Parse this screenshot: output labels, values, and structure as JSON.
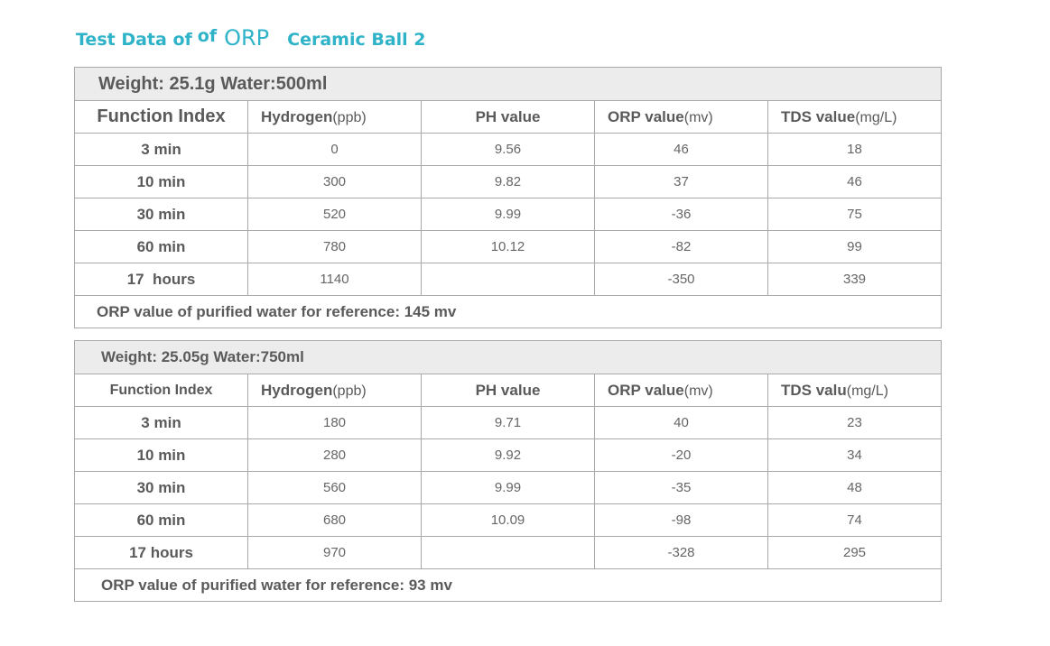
{
  "title": {
    "part1": "Test Data of",
    "part2": "of",
    "part3": "ORP",
    "part4": "Ceramic Ball 2"
  },
  "tables": [
    {
      "weight_line": "Weight: 25.1g Water:500ml",
      "headers": [
        {
          "main": "Function Index",
          "unit": ""
        },
        {
          "main": "Hydrogen",
          "unit": "(ppb)"
        },
        {
          "main": "PH value",
          "unit": ""
        },
        {
          "main": "ORP value",
          "unit": "(mv)"
        },
        {
          "main": "TDS value",
          "unit": "(mg/L)"
        }
      ],
      "rows": [
        {
          "label": "3 min",
          "hydrogen": "0",
          "ph": "9.56",
          "orp": "46",
          "tds": "18"
        },
        {
          "label": "10 min",
          "hydrogen": "300",
          "ph": "9.82",
          "orp": "37",
          "tds": "46"
        },
        {
          "label": "30 min",
          "hydrogen": "520",
          "ph": "9.99",
          "orp": "-36",
          "tds": "75"
        },
        {
          "label": "60 min",
          "hydrogen": "780",
          "ph": "10.12",
          "orp": "-82",
          "tds": "99"
        },
        {
          "label": "17  hours",
          "hydrogen": "1140",
          "ph": "",
          "orp": "-350",
          "tds": "339"
        }
      ],
      "note": "ORP value of purified water for reference: 145 mv"
    },
    {
      "weight_line": "Weight: 25.05g Water:750ml",
      "headers": [
        {
          "main": "Function Index",
          "unit": ""
        },
        {
          "main": "Hydrogen",
          "unit": "(ppb)"
        },
        {
          "main": "PH value",
          "unit": ""
        },
        {
          "main": "ORP value",
          "unit": "(mv)"
        },
        {
          "main": "TDS valu",
          "unit": "(mg/L)"
        }
      ],
      "rows": [
        {
          "label": "3 min",
          "hydrogen": "180",
          "ph": "9.71",
          "orp": "40",
          "tds": "23"
        },
        {
          "label": "10 min",
          "hydrogen": "280",
          "ph": "9.92",
          "orp": "-20",
          "tds": "34"
        },
        {
          "label": "30 min",
          "hydrogen": "560",
          "ph": "9.99",
          "orp": "-35",
          "tds": "48"
        },
        {
          "label": "60 min",
          "hydrogen": "680",
          "ph": "10.09",
          "orp": "-98",
          "tds": "74"
        },
        {
          "label": "17 hours",
          "hydrogen": "970",
          "ph": "",
          "orp": "-328",
          "tds": "295"
        }
      ],
      "note": "ORP value of purified water for reference: 93 mv"
    }
  ],
  "colors": {
    "title": "#2fb3c9",
    "header_bg": "#ececec",
    "border": "#a9a9a9",
    "text": "#666666"
  }
}
